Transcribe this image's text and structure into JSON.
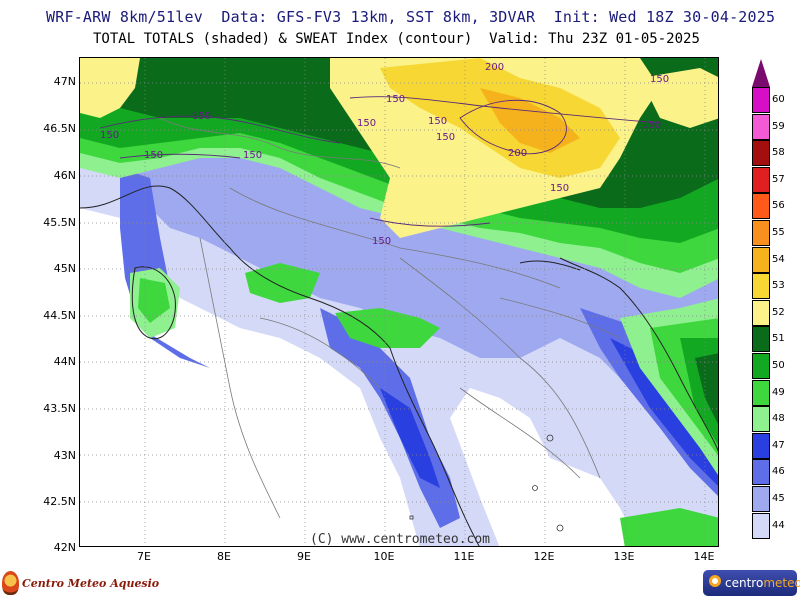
{
  "header": {
    "line1": "WRF-ARW 8km/51lev  Data: GFS-FV3 13km, SST 8km, 3DVAR  Init: Wed 18Z 30-04-2025",
    "line2": "TOTAL TOTALS (shaded) & SWEAT Index (contour)  Valid: Thu 23Z 01-05-2025"
  },
  "axes": {
    "y_labels": [
      "47N",
      "46.5N",
      "46N",
      "45.5N",
      "45N",
      "44.5N",
      "44N",
      "43.5N",
      "43N",
      "42.5N",
      "42N"
    ],
    "x_labels": [
      "7E",
      "8E",
      "9E",
      "10E",
      "11E",
      "12E",
      "13E",
      "14E"
    ]
  },
  "contour_labels": [
    "200",
    "150",
    "150",
    "150",
    "150",
    "150",
    "150",
    "150",
    "150",
    "150",
    "200",
    "150",
    "150",
    "150"
  ],
  "colorbar": {
    "levels": [
      "60",
      "59",
      "58",
      "57",
      "56",
      "55",
      "54",
      "53",
      "52",
      "51",
      "50",
      "49",
      "48",
      "47",
      "46",
      "45",
      "44"
    ],
    "colors": [
      "#d60fc7",
      "#f25ad6",
      "#a30f0f",
      "#e02020",
      "#ff5a1a",
      "#f7901e",
      "#f5b21c",
      "#f7d733",
      "#fbf28a",
      "#0a6b1a",
      "#12a822",
      "#3ed83e",
      "#8ff08f",
      "#2a3fe0",
      "#5e6ee8",
      "#9ea9f0",
      "#d4d9f8"
    ],
    "top_color": "#7a0a6e"
  },
  "watermark": "(C) www.centrometeo.com",
  "logos": {
    "left": "Centro Meteo Aquesio",
    "right_prefix": "centro",
    "right_suffix": "meteo"
  }
}
